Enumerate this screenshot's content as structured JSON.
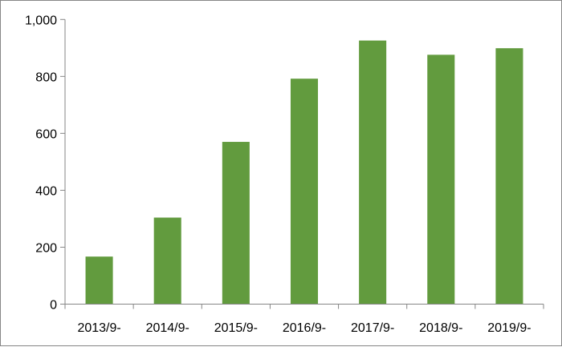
{
  "chart_data": {
    "type": "bar",
    "title": "",
    "xlabel": "",
    "ylabel": "",
    "categories": [
      "2013/9-",
      "2014/9-",
      "2015/9-",
      "2016/9-",
      "2017/9-",
      "2018/9-",
      "2019/9-"
    ],
    "values": [
      167,
      304,
      570,
      792,
      926,
      876,
      899
    ],
    "ylim": [
      0,
      1000
    ],
    "yticks": [
      0,
      200,
      400,
      600,
      800,
      1000
    ],
    "ytick_labels": [
      "0",
      "200",
      "400",
      "600",
      "800",
      "1,000"
    ],
    "grid": false,
    "legend": "none",
    "bar_color": "#629B3E",
    "axis_color": "#868686"
  }
}
